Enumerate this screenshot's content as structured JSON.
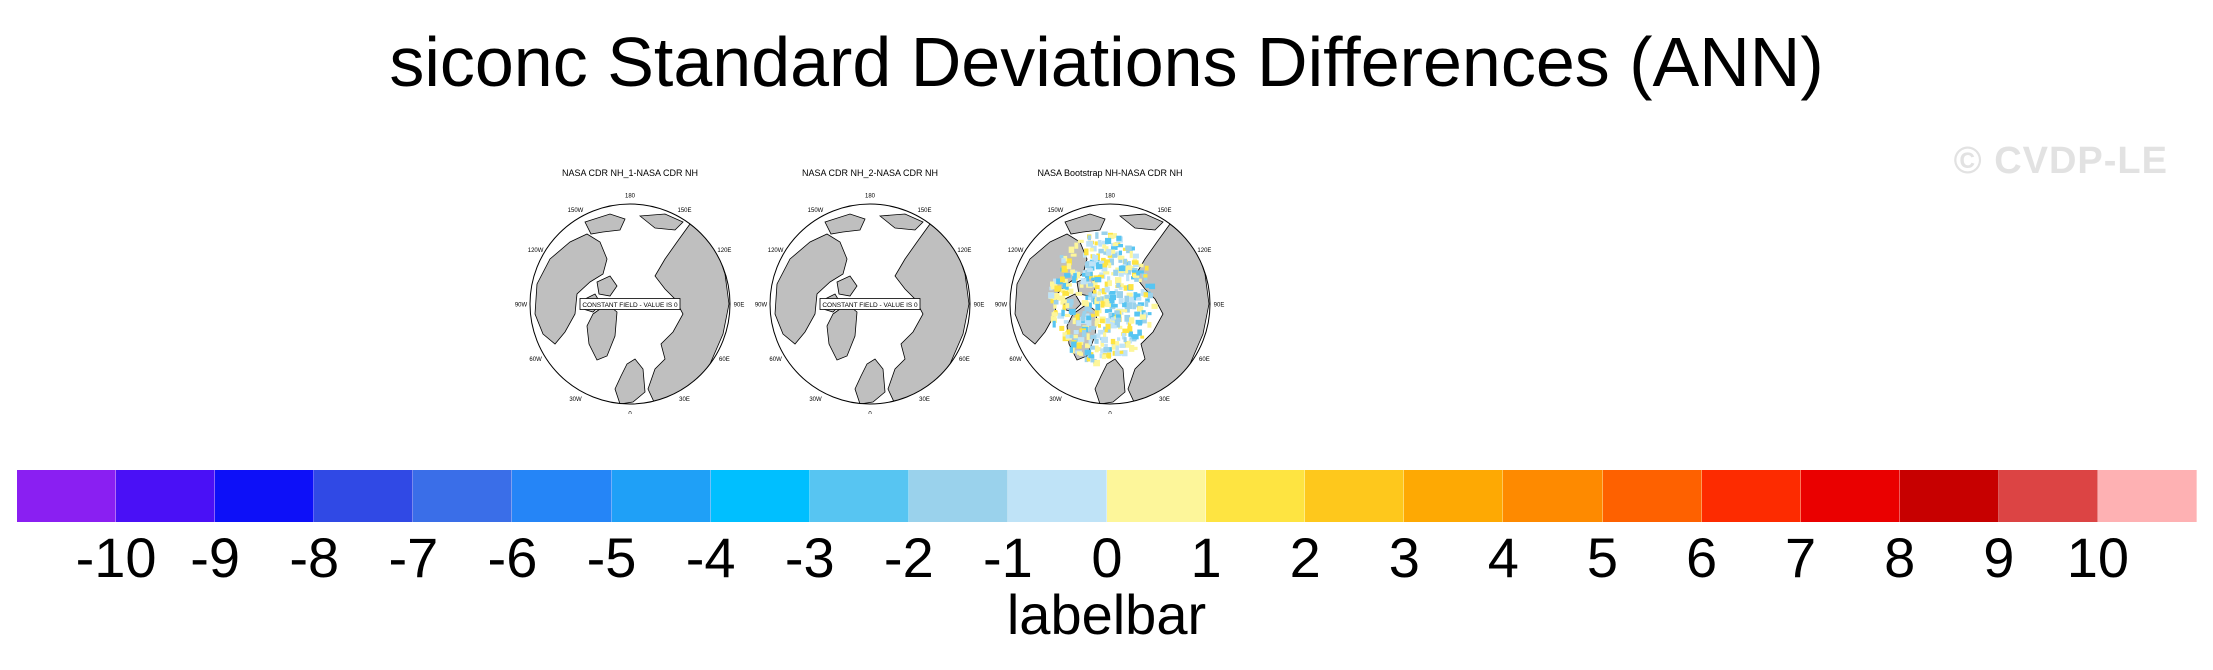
{
  "title": "siconc Standard Deviations Differences (ANN)",
  "watermark": "© CVDP-LE",
  "panels": [
    {
      "title": "NASA CDR NH_1-NASA CDR NH",
      "annotation": "CONSTANT FIELD - VALUE IS 0",
      "has_data": false
    },
    {
      "title": "NASA CDR NH_2-NASA CDR NH",
      "annotation": "CONSTANT FIELD - VALUE IS 0",
      "has_data": false
    },
    {
      "title": "NASA Bootstrap NH-NASA CDR NH",
      "annotation": "",
      "has_data": true
    }
  ],
  "map_labels": {
    "lon": [
      "180",
      "150E",
      "120E",
      "90E",
      "60E",
      "30E",
      "0",
      "30W",
      "60W",
      "90W",
      "120W",
      "150W"
    ]
  },
  "colors": {
    "land": "#bfbfbf",
    "ocean": "#ffffff",
    "coast": "#000000"
  },
  "colorbar": {
    "label": "labelbar",
    "ticks": [
      "-10",
      "-9",
      "-8",
      "-7",
      "-6",
      "-5",
      "-4",
      "-3",
      "-2",
      "-1",
      "0",
      "1",
      "2",
      "3",
      "4",
      "5",
      "6",
      "7",
      "8",
      "9",
      "10"
    ],
    "colors": [
      "#8a1ff2",
      "#4a10f6",
      "#0d10f8",
      "#3049e5",
      "#3a6ee8",
      "#2585f7",
      "#1fa0f7",
      "#00bfff",
      "#57c5f2",
      "#9ad2ec",
      "#bfe3f7",
      "#fdf69a",
      "#fee441",
      "#fec81c",
      "#fea903",
      "#fe8a00",
      "#fe6100",
      "#fd2b00",
      "#ea0000",
      "#c70000",
      "#dc4444",
      "#feb1b3"
    ]
  }
}
